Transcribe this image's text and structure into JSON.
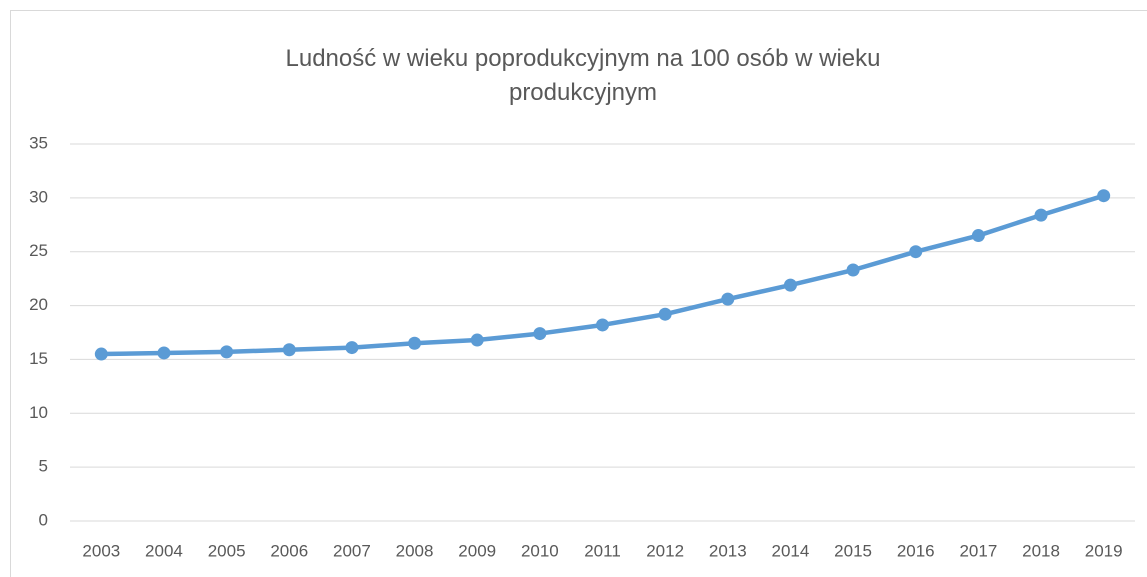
{
  "chart_data": {
    "type": "line",
    "title": "Ludność w wieku poprodukcyjnym na 100 osób w wieku produkcyjnym",
    "categories": [
      "2003",
      "2004",
      "2005",
      "2006",
      "2007",
      "2008",
      "2009",
      "2010",
      "2011",
      "2012",
      "2013",
      "2014",
      "2015",
      "2016",
      "2017",
      "2018",
      "2019"
    ],
    "values": [
      15.5,
      15.6,
      15.7,
      15.9,
      16.1,
      16.5,
      16.8,
      17.4,
      18.2,
      19.2,
      20.6,
      21.9,
      23.3,
      25.0,
      26.5,
      28.4,
      30.2
    ],
    "color": "#5b9bd5",
    "ylim": [
      0,
      35
    ],
    "yticks": [
      0,
      5,
      10,
      15,
      20,
      25,
      30,
      35
    ],
    "grid": true
  }
}
